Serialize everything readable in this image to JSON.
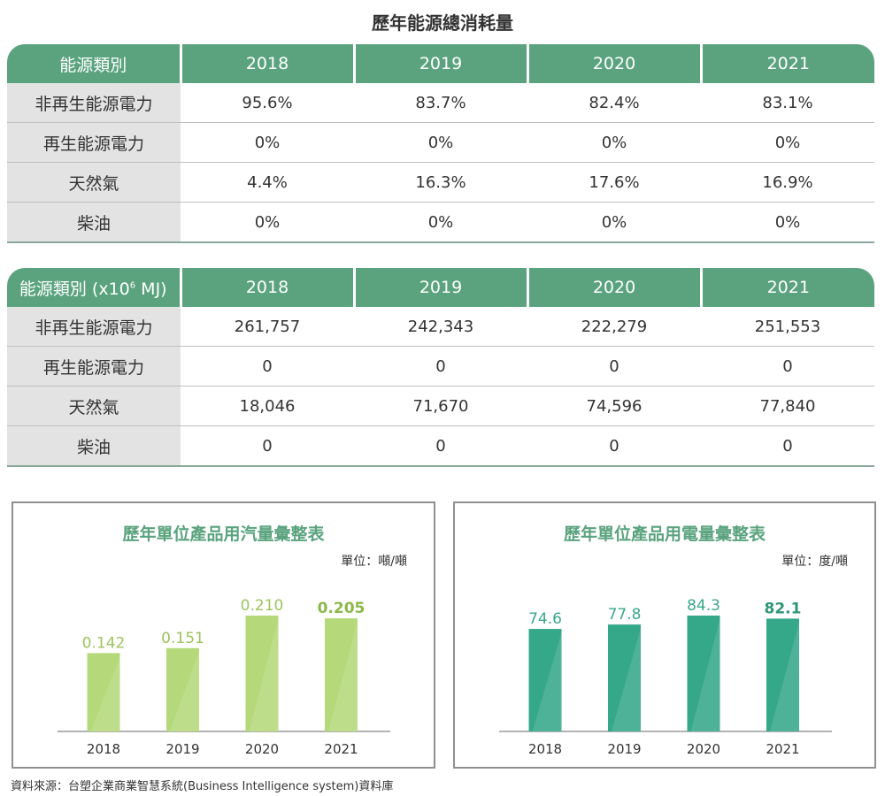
{
  "title": "歷年能源總消耗量",
  "percent_table": {
    "header": [
      "能源類別",
      "2018",
      "2019",
      "2020",
      "2021"
    ],
    "rows": [
      [
        "非再生能源電力",
        "95.6%",
        "83.7%",
        "82.4%",
        "83.1%"
      ],
      [
        "再生能源電力",
        "0%",
        "0%",
        "0%",
        "0%"
      ],
      [
        "天然氣",
        "4.4%",
        "16.3%",
        "17.6%",
        "16.9%"
      ],
      [
        "柴油",
        "0%",
        "0%",
        "0%",
        "0%"
      ]
    ]
  },
  "mj_table": {
    "header_prefix": "能源類別 (x10",
    "header_exp": "6",
    "header_suffix": " MJ)",
    "years": [
      "2018",
      "2019",
      "2020",
      "2021"
    ],
    "rows": [
      [
        "非再生能源電力",
        "261,757",
        "242,343",
        "222,279",
        "251,553"
      ],
      [
        "再生能源電力",
        "0",
        "0",
        "0",
        "0"
      ],
      [
        "天然氣",
        "18,046",
        "71,670",
        "74,596",
        "77,840"
      ],
      [
        "柴油",
        "0",
        "0",
        "0",
        "0"
      ]
    ]
  },
  "chart_data": [
    {
      "type": "bar",
      "title": "歷年單位產品用汽量彙整表",
      "unit": "單位：噸/噸",
      "categories": [
        "2018",
        "2019",
        "2020",
        "2021"
      ],
      "values": [
        0.142,
        0.151,
        0.21,
        0.205
      ],
      "labels": [
        "0.142",
        "0.151",
        "0.210",
        "0.205"
      ],
      "highlight_index": 3,
      "colors": {
        "bar": "#b5d97a",
        "label": "#9cc45c",
        "highlight_label": "#8cb84a",
        "title": "#5aa37e"
      }
    },
    {
      "type": "bar",
      "title": "歷年單位產品用電量彙整表",
      "unit": "單位：度/噸",
      "categories": [
        "2018",
        "2019",
        "2020",
        "2021"
      ],
      "values": [
        74.6,
        77.8,
        84.3,
        82.1
      ],
      "labels": [
        "74.6",
        "77.8",
        "84.3",
        "82.1"
      ],
      "highlight_index": 3,
      "colors": {
        "bar": "#35a889",
        "label": "#3aa88a",
        "highlight_label": "#2e9577",
        "title": "#5aa37e"
      }
    }
  ],
  "source": "資料來源：台塑企業商業智慧系統(Business Intelligence system)資料庫"
}
